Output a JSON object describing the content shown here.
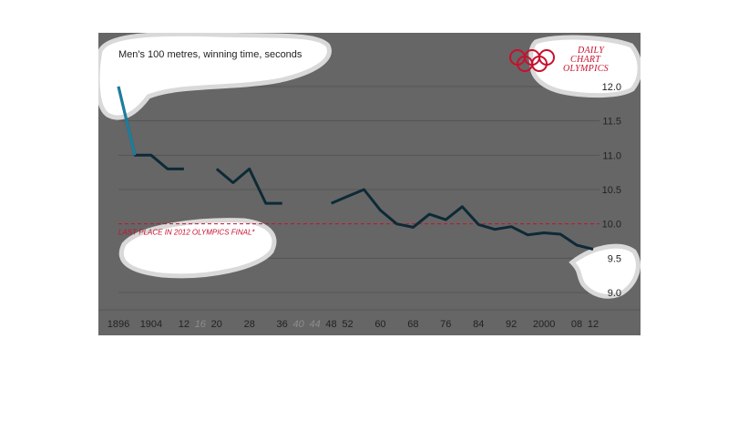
{
  "colors": {
    "background": "#666666",
    "line": "#0d2a36",
    "first_segment": "#1a7fa0",
    "reference": "#c8102e",
    "blob": "#ffffff",
    "blob_edge": "#d9d9d9",
    "axis_text": "#222222",
    "missing_years": "#8c8c8c"
  },
  "header": {
    "subtitle": "Men's 100 metres, winning time, seconds",
    "brand_lines": [
      "DAILY",
      "CHART",
      "OLYMPICS"
    ],
    "logo": "olympic-rings-icon"
  },
  "chart_data": {
    "type": "line",
    "subtitle": "Men's 100 metres, winning time, seconds",
    "ylim": [
      9.0,
      12.0
    ],
    "y_ticks": [
      {
        "value": 12.0,
        "label": "12.0"
      },
      {
        "value": 11.5,
        "label": "11.5"
      },
      {
        "value": 11.0,
        "label": "11.0"
      },
      {
        "value": 10.5,
        "label": "10.5"
      },
      {
        "value": 10.0,
        "label": "10.0"
      },
      {
        "value": 9.5,
        "label": "9.5"
      },
      {
        "value": 9.0,
        "label": "9.0"
      }
    ],
    "xlim": [
      1896,
      2012
    ],
    "x_ticks": [
      {
        "year": 1896,
        "label": "1896",
        "missing": false
      },
      {
        "year": 1904,
        "label": "1904",
        "missing": false
      },
      {
        "year": 1912,
        "label": "12",
        "missing": false
      },
      {
        "year": 1916,
        "label": "16",
        "missing": true
      },
      {
        "year": 1920,
        "label": "20",
        "missing": false
      },
      {
        "year": 1928,
        "label": "28",
        "missing": false
      },
      {
        "year": 1936,
        "label": "36",
        "missing": false
      },
      {
        "year": 1940,
        "label": "40",
        "missing": true
      },
      {
        "year": 1944,
        "label": "44",
        "missing": true
      },
      {
        "year": 1948,
        "label": "48",
        "missing": false
      },
      {
        "year": 1952,
        "label": "52",
        "missing": false
      },
      {
        "year": 1960,
        "label": "60",
        "missing": false
      },
      {
        "year": 1968,
        "label": "68",
        "missing": false
      },
      {
        "year": 1976,
        "label": "76",
        "missing": false
      },
      {
        "year": 1984,
        "label": "84",
        "missing": false
      },
      {
        "year": 1992,
        "label": "92",
        "missing": false
      },
      {
        "year": 2000,
        "label": "2000",
        "missing": false
      },
      {
        "year": 2008,
        "label": "08",
        "missing": false
      },
      {
        "year": 2012,
        "label": "12",
        "missing": false
      }
    ],
    "series": [
      {
        "segments": [
          [
            [
              1896,
              12.0
            ],
            [
              1900,
              11.0
            ],
            [
              1904,
              11.0
            ],
            [
              1908,
              10.8
            ],
            [
              1912,
              10.8
            ]
          ],
          [
            [
              1920,
              10.8
            ],
            [
              1924,
              10.6
            ],
            [
              1928,
              10.8
            ],
            [
              1932,
              10.3
            ],
            [
              1936,
              10.3
            ]
          ],
          [
            [
              1948,
              10.3
            ],
            [
              1952,
              10.4
            ],
            [
              1956,
              10.5
            ],
            [
              1960,
              10.2
            ],
            [
              1964,
              10.0
            ],
            [
              1968,
              9.95
            ],
            [
              1972,
              10.14
            ],
            [
              1976,
              10.06
            ],
            [
              1980,
              10.25
            ],
            [
              1984,
              9.99
            ],
            [
              1988,
              9.92
            ],
            [
              1992,
              9.96
            ],
            [
              1996,
              9.84
            ],
            [
              2000,
              9.87
            ],
            [
              2004,
              9.85
            ],
            [
              2008,
              9.69
            ],
            [
              2012,
              9.63
            ]
          ]
        ]
      }
    ],
    "reference_line": {
      "value": 10.0,
      "label": "LAST PLACE IN 2012 OLYMPICS FINAL*"
    }
  }
}
